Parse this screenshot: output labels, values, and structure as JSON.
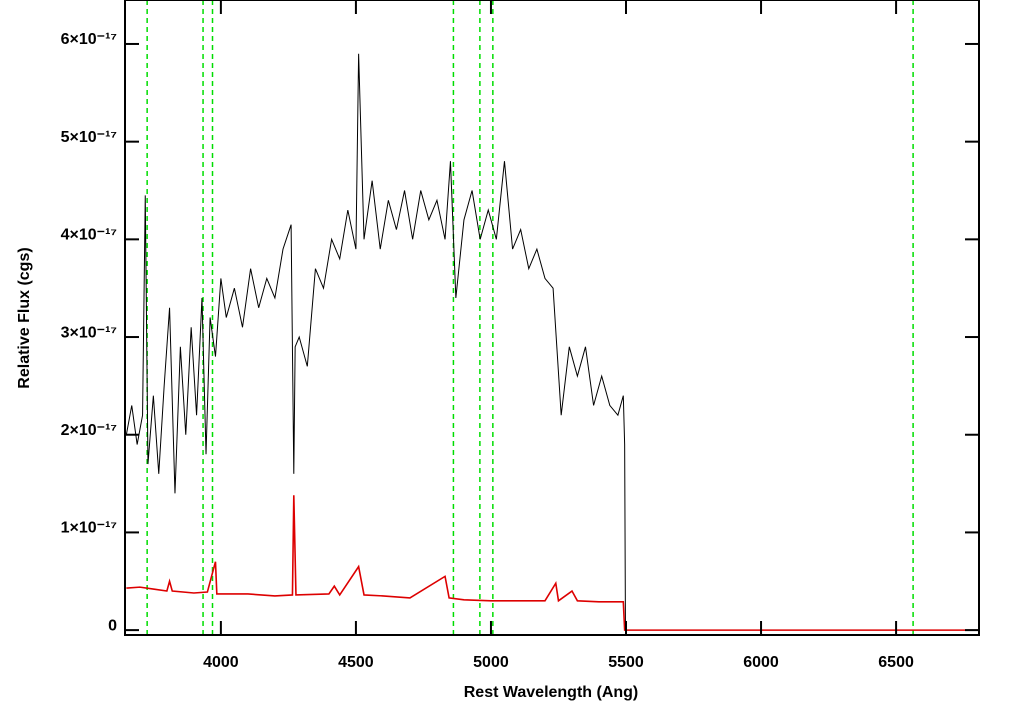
{
  "chart_data": {
    "type": "line",
    "xlabel": "Rest Wavelength (Ang)",
    "ylabel": "Relative Flux (cgs)",
    "xlim": [
      3645,
      6807
    ],
    "ylim": [
      -5e-19,
      6.45e-17
    ],
    "xticks": [
      4000,
      4500,
      5000,
      5500,
      6000,
      6500
    ],
    "yticks": [
      0,
      {
        "value": 1e-17,
        "label": "1×10⁻¹⁷"
      },
      {
        "value": 2e-17,
        "label": "2×10⁻¹⁷"
      },
      {
        "value": 3e-17,
        "label": "3×10⁻¹⁷"
      },
      {
        "value": 4e-17,
        "label": "4×10⁻¹⁷"
      },
      {
        "value": 5e-17,
        "label": "5×10⁻¹⁷"
      },
      {
        "value": 6e-17,
        "label": "6×10⁻¹⁷"
      }
    ],
    "vlines": [
      3727,
      3934,
      3969,
      4861,
      4959,
      5007,
      6563
    ],
    "vline_color": "#00dd00",
    "series": [
      {
        "color": "#000000",
        "x": [
          3650,
          3670,
          3690,
          3710,
          3720,
          3730,
          3750,
          3770,
          3790,
          3810,
          3830,
          3850,
          3870,
          3890,
          3910,
          3930,
          3945,
          3960,
          3980,
          4000,
          4020,
          4050,
          4080,
          4110,
          4140,
          4170,
          4200,
          4230,
          4260,
          4270,
          4275,
          4290,
          4320,
          4350,
          4380,
          4410,
          4440,
          4470,
          4500,
          4510,
          4530,
          4560,
          4590,
          4620,
          4650,
          4680,
          4710,
          4740,
          4770,
          4800,
          4830,
          4850,
          4870,
          4900,
          4930,
          4960,
          4990,
          5020,
          5050,
          5080,
          5110,
          5140,
          5170,
          5200,
          5230,
          5260,
          5290,
          5320,
          5350,
          5380,
          5410,
          5440,
          5470,
          5490,
          5495,
          5498
        ],
        "values": [
          2e-17,
          2.3e-17,
          1.9e-17,
          2.2e-17,
          4.45e-17,
          1.7e-17,
          2.4e-17,
          1.6e-17,
          2.5e-17,
          3.3e-17,
          1.4e-17,
          2.9e-17,
          2e-17,
          3.1e-17,
          2.2e-17,
          3.4e-17,
          1.8e-17,
          3.2e-17,
          2.8e-17,
          3.6e-17,
          3.2e-17,
          3.5e-17,
          3.1e-17,
          3.7e-17,
          3.3e-17,
          3.6e-17,
          3.4e-17,
          3.9e-17,
          4.15e-17,
          1.6e-17,
          2.9e-17,
          3e-17,
          2.7e-17,
          3.7e-17,
          3.5e-17,
          4e-17,
          3.8e-17,
          4.3e-17,
          3.9e-17,
          5.9e-17,
          4e-17,
          4.6e-17,
          3.9e-17,
          4.4e-17,
          4.1e-17,
          4.5e-17,
          4e-17,
          4.5e-17,
          4.2e-17,
          4.4e-17,
          4e-17,
          4.8e-17,
          3.4e-17,
          4.2e-17,
          4.5e-17,
          4e-17,
          4.3e-17,
          4e-17,
          4.8e-17,
          3.9e-17,
          4.1e-17,
          3.7e-17,
          3.9e-17,
          3.6e-17,
          3.5e-17,
          2.2e-17,
          2.9e-17,
          2.6e-17,
          2.9e-17,
          2.3e-17,
          2.6e-17,
          2.3e-17,
          2.2e-17,
          2.4e-17,
          1.9e-17,
          0
        ]
      },
      {
        "color": "#dd0000",
        "x": [
          3650,
          3700,
          3750,
          3800,
          3810,
          3820,
          3900,
          3950,
          3980,
          3985,
          4100,
          4200,
          4265,
          4270,
          4278,
          4400,
          4420,
          4440,
          4510,
          4530,
          4600,
          4700,
          4830,
          4845,
          4900,
          5000,
          5100,
          5200,
          5240,
          5250,
          5300,
          5320,
          5400,
          5490,
          5495,
          6807
        ],
        "values": [
          4.3e-18,
          4.4e-18,
          4.2e-18,
          4e-18,
          5e-18,
          4e-18,
          3.8e-18,
          3.9e-18,
          7e-18,
          3.7e-18,
          3.7e-18,
          3.5e-18,
          3.6e-18,
          1.38e-17,
          3.6e-18,
          3.7e-18,
          4.5e-18,
          3.6e-18,
          6.5e-18,
          3.6e-18,
          3.5e-18,
          3.3e-18,
          5.5e-18,
          3.3e-18,
          3.1e-18,
          3e-18,
          3e-18,
          3e-18,
          4.8e-18,
          3e-18,
          4e-18,
          3e-18,
          2.9e-18,
          2.9e-18,
          0,
          0
        ]
      }
    ]
  }
}
